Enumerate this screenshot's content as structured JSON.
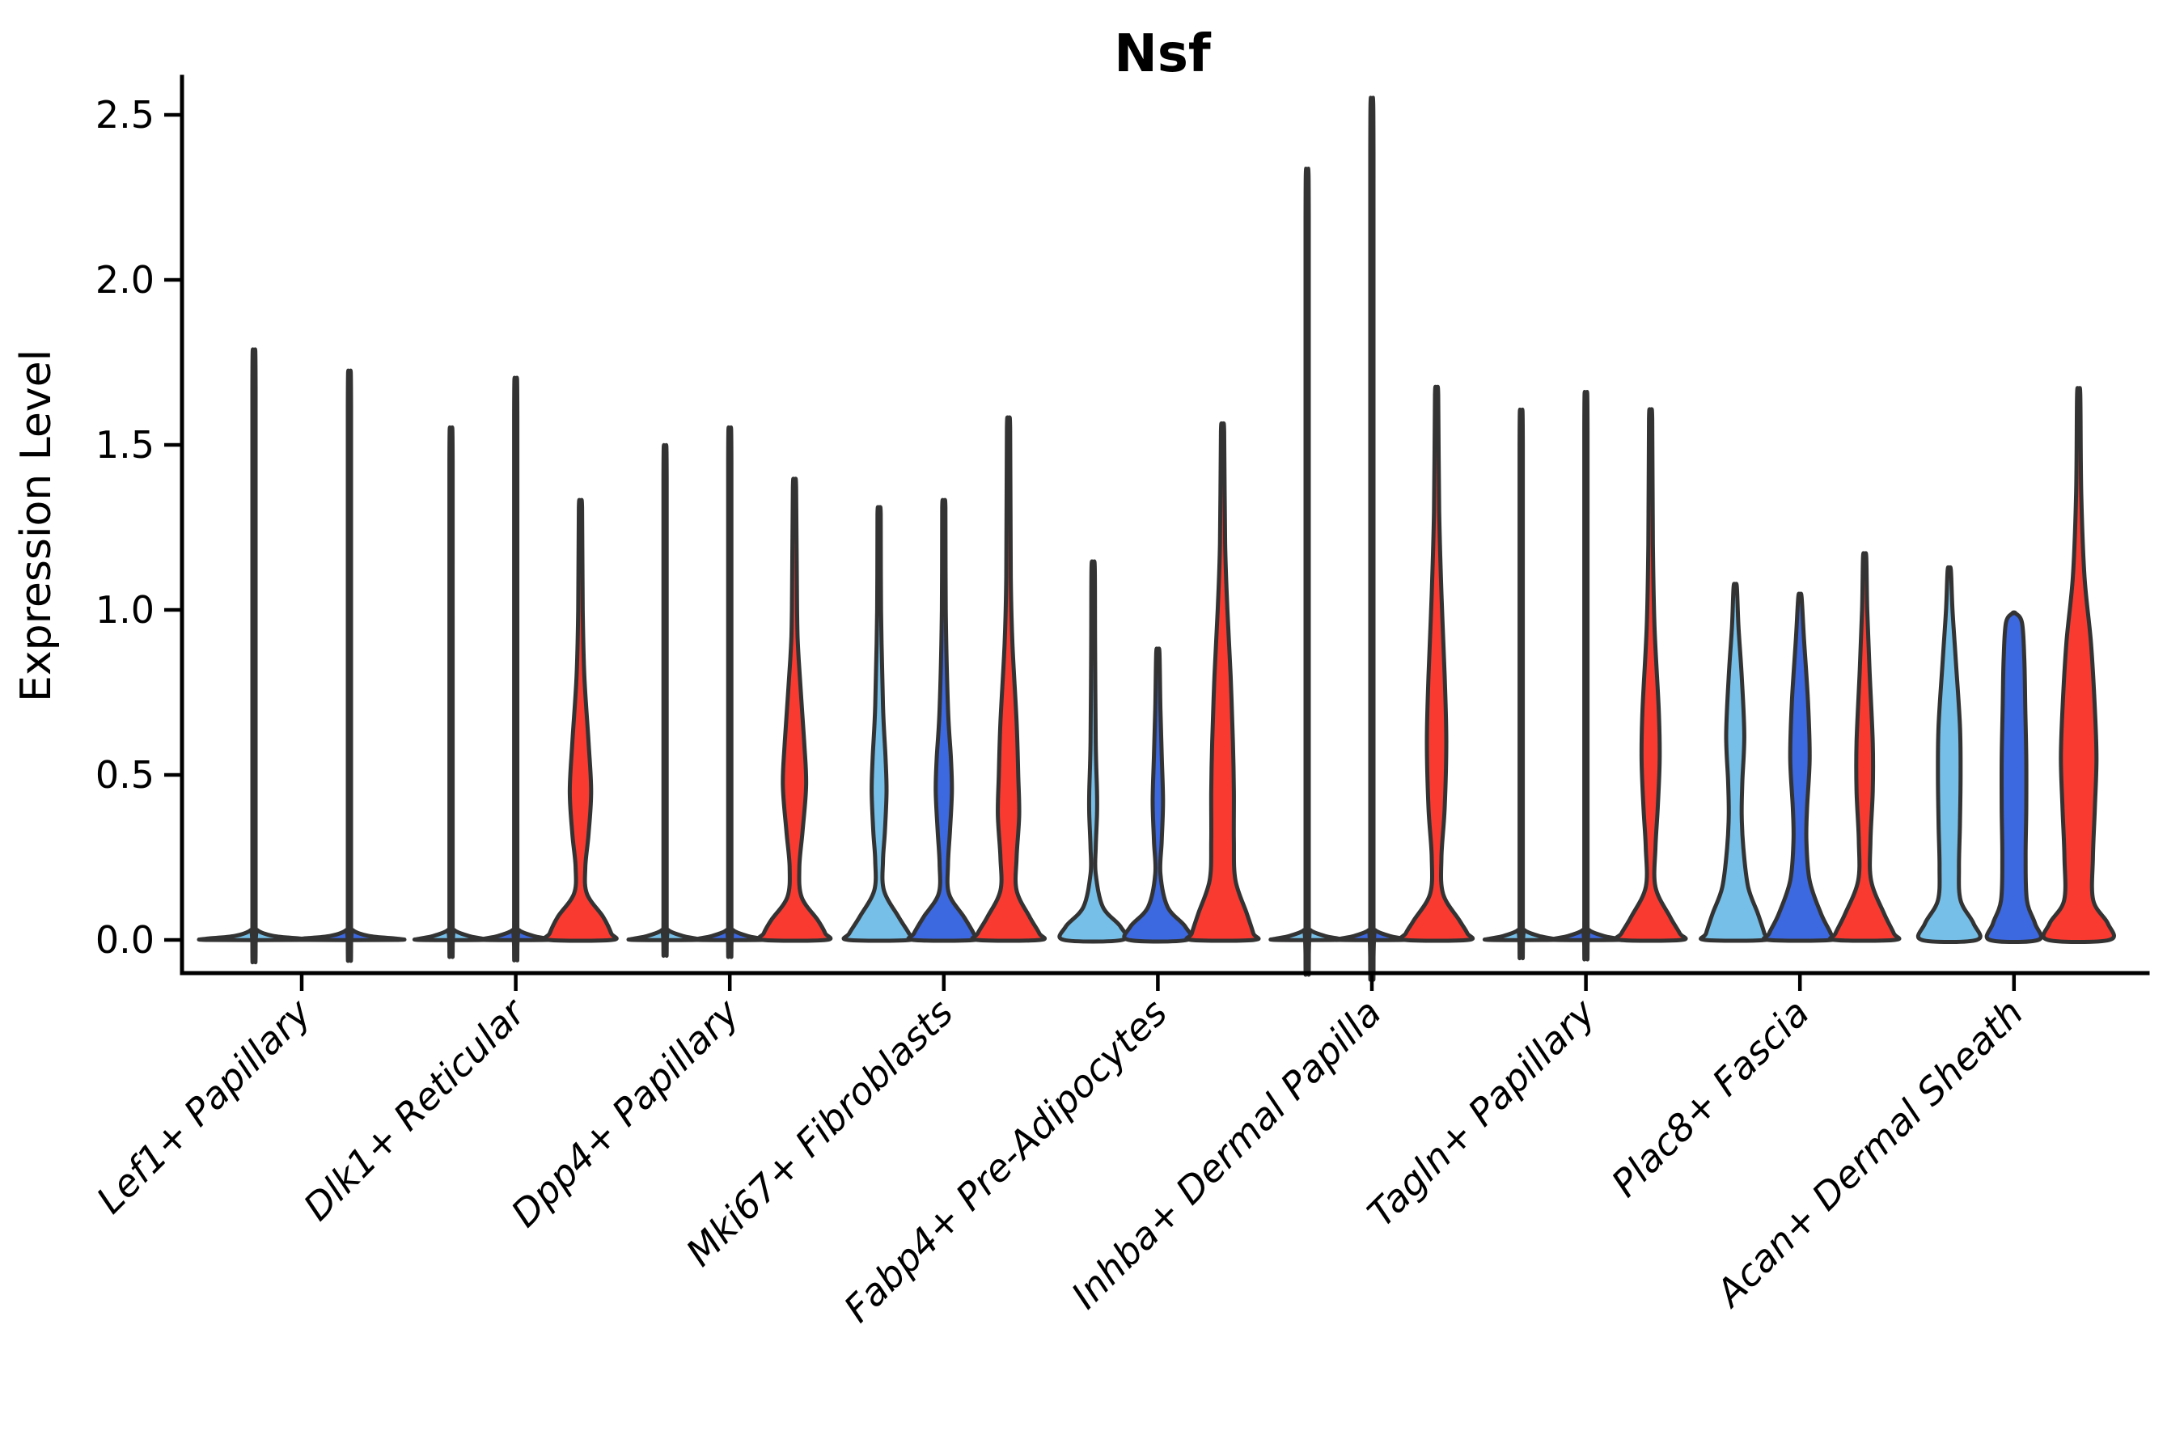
{
  "chart_data": {
    "type": "violin",
    "title": "Nsf",
    "ylabel": "Expression Level",
    "xlabel": "",
    "ylim": [
      -0.1,
      2.62
    ],
    "grid": false,
    "legend": "none",
    "yticks": [
      {
        "value": 0.0,
        "label": "0.0"
      },
      {
        "value": 0.5,
        "label": "0.5"
      },
      {
        "value": 1.0,
        "label": "1.0"
      },
      {
        "value": 1.5,
        "label": "1.5"
      },
      {
        "value": 2.0,
        "label": "2.0"
      },
      {
        "value": 2.5,
        "label": "2.5"
      }
    ],
    "categories": [
      "Lef1+ Papillary",
      "Dlk1+ Reticular",
      "Dpp4+ Papillary",
      "Mki67+ Fibroblasts",
      "Fabp4+ Pre-Adipocytes",
      "Inhba+ Dermal Papilla",
      "Tagln+ Papillary",
      "Plac8+ Fascia",
      "Acan+ Dermal Sheath"
    ],
    "groups": {
      "light_blue": "#75BFE8",
      "dark_blue": "#3C68E0",
      "red": "#F93A31"
    },
    "outline_color": "#333333",
    "axis_color": "#000000",
    "violins": [
      {
        "cat": 0,
        "group": "light_blue",
        "offset": -59,
        "max": 1.67,
        "profile": [
          [
            1.67,
            0.05
          ],
          [
            0.06,
            0.05
          ],
          [
            0.03,
            0.1
          ],
          [
            0.012,
            0.6
          ],
          [
            0.004,
            1.45
          ],
          [
            0,
            1.45
          ]
        ]
      },
      {
        "cat": 0,
        "group": "dark_blue",
        "offset": 59,
        "max": 1.61,
        "profile": [
          [
            1.61,
            0.05
          ],
          [
            0.06,
            0.05
          ],
          [
            0.03,
            0.1
          ],
          [
            0.012,
            0.6
          ],
          [
            0.004,
            1.45
          ],
          [
            0,
            1.45
          ]
        ]
      },
      {
        "cat": 1,
        "group": "light_blue",
        "offset": -80,
        "max": 1.45,
        "profile": [
          [
            1.45,
            0.05
          ],
          [
            0.06,
            0.05
          ],
          [
            0.03,
            0.1
          ],
          [
            0.012,
            0.55
          ],
          [
            0.004,
            0.97
          ],
          [
            0,
            0.97
          ]
        ]
      },
      {
        "cat": 1,
        "group": "dark_blue",
        "offset": 0,
        "max": 1.59,
        "profile": [
          [
            1.59,
            0.05
          ],
          [
            0.06,
            0.05
          ],
          [
            0.03,
            0.1
          ],
          [
            0.012,
            0.55
          ],
          [
            0.004,
            0.97
          ],
          [
            0,
            0.97
          ]
        ]
      },
      {
        "cat": 1,
        "group": "red",
        "offset": 80,
        "max": 1.31,
        "profile": [
          [
            1.31,
            0.05
          ],
          [
            1.0,
            0.07
          ],
          [
            0.8,
            0.12
          ],
          [
            0.6,
            0.25
          ],
          [
            0.45,
            0.33
          ],
          [
            0.32,
            0.25
          ],
          [
            0.22,
            0.15
          ],
          [
            0.14,
            0.2
          ],
          [
            0.07,
            0.7
          ],
          [
            0.02,
            0.95
          ],
          [
            0,
            0.97
          ]
        ]
      },
      {
        "cat": 2,
        "group": "light_blue",
        "offset": -80,
        "max": 1.4,
        "profile": [
          [
            1.4,
            0.05
          ],
          [
            0.06,
            0.05
          ],
          [
            0.03,
            0.1
          ],
          [
            0.012,
            0.55
          ],
          [
            0.004,
            0.97
          ],
          [
            0,
            0.97
          ]
        ]
      },
      {
        "cat": 2,
        "group": "dark_blue",
        "offset": 0,
        "max": 1.45,
        "profile": [
          [
            1.45,
            0.05
          ],
          [
            0.06,
            0.05
          ],
          [
            0.03,
            0.1
          ],
          [
            0.012,
            0.55
          ],
          [
            0.004,
            0.97
          ],
          [
            0,
            0.97
          ]
        ]
      },
      {
        "cat": 2,
        "group": "red",
        "offset": 80,
        "max": 1.37,
        "profile": [
          [
            1.37,
            0.05
          ],
          [
            1.0,
            0.08
          ],
          [
            0.85,
            0.13
          ],
          [
            0.6,
            0.3
          ],
          [
            0.47,
            0.36
          ],
          [
            0.33,
            0.25
          ],
          [
            0.22,
            0.15
          ],
          [
            0.13,
            0.22
          ],
          [
            0.06,
            0.72
          ],
          [
            0.02,
            0.95
          ],
          [
            0,
            0.97
          ]
        ]
      },
      {
        "cat": 3,
        "group": "light_blue",
        "offset": -80,
        "max": 1.29,
        "profile": [
          [
            1.29,
            0.05
          ],
          [
            1.0,
            0.06
          ],
          [
            0.71,
            0.12
          ],
          [
            0.55,
            0.2
          ],
          [
            0.45,
            0.23
          ],
          [
            0.33,
            0.18
          ],
          [
            0.24,
            0.12
          ],
          [
            0.15,
            0.15
          ],
          [
            0.07,
            0.6
          ],
          [
            0.02,
            0.92
          ],
          [
            0,
            0.95
          ]
        ]
      },
      {
        "cat": 3,
        "group": "dark_blue",
        "offset": 0,
        "max": 1.31,
        "profile": [
          [
            1.31,
            0.05
          ],
          [
            1.0,
            0.06
          ],
          [
            0.7,
            0.13
          ],
          [
            0.55,
            0.22
          ],
          [
            0.45,
            0.25
          ],
          [
            0.33,
            0.19
          ],
          [
            0.23,
            0.13
          ],
          [
            0.14,
            0.16
          ],
          [
            0.07,
            0.62
          ],
          [
            0.02,
            0.92
          ],
          [
            0,
            0.95
          ]
        ]
      },
      {
        "cat": 3,
        "group": "red",
        "offset": 80,
        "max": 1.55,
        "profile": [
          [
            1.55,
            0.05
          ],
          [
            1.1,
            0.07
          ],
          [
            0.9,
            0.12
          ],
          [
            0.66,
            0.25
          ],
          [
            0.5,
            0.3
          ],
          [
            0.38,
            0.33
          ],
          [
            0.25,
            0.25
          ],
          [
            0.15,
            0.25
          ],
          [
            0.07,
            0.65
          ],
          [
            0.02,
            0.95
          ],
          [
            0,
            0.97
          ]
        ]
      },
      {
        "cat": 4,
        "group": "light_blue",
        "offset": -80,
        "max": 1.13,
        "profile": [
          [
            1.13,
            0.05
          ],
          [
            0.9,
            0.06
          ],
          [
            0.6,
            0.08
          ],
          [
            0.45,
            0.12
          ],
          [
            0.38,
            0.12
          ],
          [
            0.28,
            0.08
          ],
          [
            0.2,
            0.08
          ],
          [
            0.1,
            0.3
          ],
          [
            0.04,
            0.85
          ],
          [
            0,
            0.9
          ]
        ]
      },
      {
        "cat": 4,
        "group": "dark_blue",
        "offset": 0,
        "max": 0.87,
        "profile": [
          [
            0.87,
            0.05
          ],
          [
            0.7,
            0.08
          ],
          [
            0.56,
            0.12
          ],
          [
            0.42,
            0.16
          ],
          [
            0.3,
            0.12
          ],
          [
            0.2,
            0.08
          ],
          [
            0.1,
            0.3
          ],
          [
            0.04,
            0.85
          ],
          [
            0,
            0.9
          ]
        ]
      },
      {
        "cat": 4,
        "group": "red",
        "offset": 80,
        "max": 1.54,
        "profile": [
          [
            1.54,
            0.05
          ],
          [
            1.2,
            0.08
          ],
          [
            1.0,
            0.15
          ],
          [
            0.8,
            0.25
          ],
          [
            0.6,
            0.32
          ],
          [
            0.45,
            0.35
          ],
          [
            0.3,
            0.35
          ],
          [
            0.18,
            0.4
          ],
          [
            0.08,
            0.75
          ],
          [
            0.02,
            0.95
          ],
          [
            0,
            0.97
          ]
        ]
      },
      {
        "cat": 5,
        "group": "light_blue",
        "offset": -80,
        "max": 2.18,
        "profile": [
          [
            2.18,
            0.05
          ],
          [
            0.06,
            0.05
          ],
          [
            0.03,
            0.1
          ],
          [
            0.012,
            0.55
          ],
          [
            0.004,
            0.97
          ],
          [
            0,
            0.97
          ]
        ]
      },
      {
        "cat": 5,
        "group": "dark_blue",
        "offset": 0,
        "max": 2.38,
        "profile": [
          [
            2.38,
            0.05
          ],
          [
            0.06,
            0.05
          ],
          [
            0.03,
            0.1
          ],
          [
            0.012,
            0.55
          ],
          [
            0.004,
            0.97
          ],
          [
            0,
            0.97
          ]
        ]
      },
      {
        "cat": 5,
        "group": "red",
        "offset": 80,
        "max": 1.65,
        "profile": [
          [
            1.65,
            0.05
          ],
          [
            1.3,
            0.08
          ],
          [
            1.05,
            0.15
          ],
          [
            0.8,
            0.25
          ],
          [
            0.6,
            0.3
          ],
          [
            0.4,
            0.25
          ],
          [
            0.25,
            0.15
          ],
          [
            0.14,
            0.2
          ],
          [
            0.06,
            0.7
          ],
          [
            0.02,
            0.95
          ],
          [
            0,
            0.97
          ]
        ]
      },
      {
        "cat": 6,
        "group": "light_blue",
        "offset": -80,
        "max": 1.5,
        "profile": [
          [
            1.5,
            0.05
          ],
          [
            0.06,
            0.05
          ],
          [
            0.03,
            0.1
          ],
          [
            0.012,
            0.55
          ],
          [
            0.004,
            0.97
          ],
          [
            0,
            0.97
          ]
        ]
      },
      {
        "cat": 6,
        "group": "dark_blue",
        "offset": 0,
        "max": 1.55,
        "profile": [
          [
            1.55,
            0.05
          ],
          [
            0.06,
            0.05
          ],
          [
            0.03,
            0.1
          ],
          [
            0.012,
            0.55
          ],
          [
            0.004,
            0.97
          ],
          [
            0,
            0.97
          ]
        ]
      },
      {
        "cat": 6,
        "group": "red",
        "offset": 80,
        "max": 1.58,
        "profile": [
          [
            1.58,
            0.05
          ],
          [
            1.2,
            0.07
          ],
          [
            0.95,
            0.12
          ],
          [
            0.7,
            0.25
          ],
          [
            0.55,
            0.28
          ],
          [
            0.4,
            0.22
          ],
          [
            0.28,
            0.15
          ],
          [
            0.16,
            0.15
          ],
          [
            0.07,
            0.6
          ],
          [
            0.02,
            0.9
          ],
          [
            0,
            0.95
          ]
        ]
      },
      {
        "cat": 7,
        "group": "light_blue",
        "offset": -80,
        "max": 1.07,
        "profile": [
          [
            1.07,
            0.05
          ],
          [
            0.95,
            0.1
          ],
          [
            0.8,
            0.2
          ],
          [
            0.62,
            0.28
          ],
          [
            0.48,
            0.22
          ],
          [
            0.38,
            0.2
          ],
          [
            0.28,
            0.25
          ],
          [
            0.16,
            0.4
          ],
          [
            0.08,
            0.7
          ],
          [
            0.02,
            0.9
          ],
          [
            0,
            0.93
          ]
        ]
      },
      {
        "cat": 7,
        "group": "dark_blue",
        "offset": 0,
        "max": 1.04,
        "profile": [
          [
            1.04,
            0.05
          ],
          [
            0.92,
            0.12
          ],
          [
            0.72,
            0.25
          ],
          [
            0.55,
            0.3
          ],
          [
            0.4,
            0.22
          ],
          [
            0.3,
            0.2
          ],
          [
            0.18,
            0.3
          ],
          [
            0.08,
            0.65
          ],
          [
            0.02,
            0.95
          ],
          [
            0,
            0.97
          ]
        ]
      },
      {
        "cat": 7,
        "group": "red",
        "offset": 80,
        "max": 1.16,
        "profile": [
          [
            1.16,
            0.05
          ],
          [
            1.0,
            0.08
          ],
          [
            0.82,
            0.15
          ],
          [
            0.6,
            0.25
          ],
          [
            0.45,
            0.25
          ],
          [
            0.3,
            0.18
          ],
          [
            0.18,
            0.2
          ],
          [
            0.08,
            0.6
          ],
          [
            0.02,
            0.9
          ],
          [
            0,
            0.93
          ]
        ]
      },
      {
        "cat": 8,
        "group": "light_blue",
        "offset": -80,
        "max": 1.12,
        "profile": [
          [
            1.12,
            0.05
          ],
          [
            1.0,
            0.1
          ],
          [
            0.85,
            0.2
          ],
          [
            0.65,
            0.33
          ],
          [
            0.5,
            0.35
          ],
          [
            0.35,
            0.33
          ],
          [
            0.22,
            0.3
          ],
          [
            0.12,
            0.35
          ],
          [
            0.05,
            0.75
          ],
          [
            0,
            0.85
          ]
        ]
      },
      {
        "cat": 8,
        "group": "dark_blue",
        "offset": 0,
        "max": 0.99,
        "profile": [
          [
            0.99,
            0.05
          ],
          [
            0.96,
            0.25
          ],
          [
            0.85,
            0.32
          ],
          [
            0.7,
            0.35
          ],
          [
            0.55,
            0.38
          ],
          [
            0.4,
            0.38
          ],
          [
            0.25,
            0.36
          ],
          [
            0.12,
            0.4
          ],
          [
            0.05,
            0.65
          ],
          [
            0,
            0.75
          ]
        ]
      },
      {
        "cat": 8,
        "group": "red",
        "offset": 80,
        "max": 1.65,
        "profile": [
          [
            1.65,
            0.05
          ],
          [
            1.35,
            0.08
          ],
          [
            1.1,
            0.18
          ],
          [
            0.9,
            0.38
          ],
          [
            0.7,
            0.5
          ],
          [
            0.55,
            0.55
          ],
          [
            0.4,
            0.5
          ],
          [
            0.25,
            0.44
          ],
          [
            0.12,
            0.45
          ],
          [
            0.05,
            0.9
          ],
          [
            0,
            0.95
          ]
        ]
      }
    ]
  }
}
